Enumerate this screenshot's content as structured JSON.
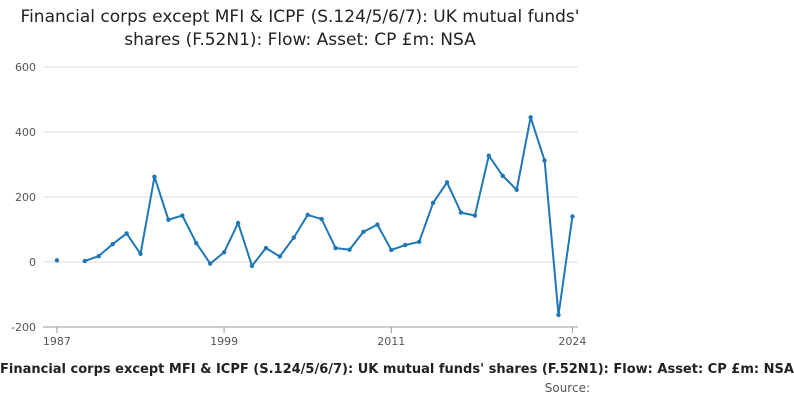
{
  "chart_data": {
    "type": "line",
    "title": "Financial corps except MFI & ICPF (S.124/5/6/7): UK mutual funds' shares (F.52N1): Flow: Asset: CP £m: NSA",
    "xlabel": "",
    "ylabel": "",
    "ylim": [
      -200,
      600
    ],
    "yticks": [
      -200,
      0,
      200,
      400,
      600
    ],
    "xticks": [
      1987,
      1999,
      2011,
      2024
    ],
    "grid": true,
    "legend": "none",
    "series": [
      {
        "name": "UK mutual funds' shares flow",
        "color": "#1f77b4",
        "points": [
          [
            1987,
            5
          ],
          [
            1989,
            3
          ],
          [
            1990,
            18
          ],
          [
            1991,
            55
          ],
          [
            1992,
            88
          ],
          [
            1993,
            25
          ],
          [
            1994,
            262
          ],
          [
            1995,
            130
          ],
          [
            1996,
            143
          ],
          [
            1997,
            58
          ],
          [
            1998,
            -5
          ],
          [
            1999,
            30
          ],
          [
            2000,
            120
          ],
          [
            2001,
            -12
          ],
          [
            2002,
            43
          ],
          [
            2003,
            17
          ],
          [
            2004,
            75
          ],
          [
            2005,
            145
          ],
          [
            2006,
            132
          ],
          [
            2007,
            43
          ],
          [
            2008,
            38
          ],
          [
            2009,
            93
          ],
          [
            2010,
            115
          ],
          [
            2011,
            37
          ],
          [
            2012,
            52
          ],
          [
            2013,
            62
          ],
          [
            2014,
            182
          ],
          [
            2015,
            245
          ],
          [
            2016,
            152
          ],
          [
            2017,
            143
          ],
          [
            2018,
            327
          ],
          [
            2019,
            265
          ],
          [
            2020,
            222
          ],
          [
            2021,
            445
          ],
          [
            2022,
            312
          ],
          [
            2023,
            -163
          ],
          [
            2024,
            140
          ]
        ]
      }
    ]
  },
  "footer": {
    "caption": "Financial corps except MFI & ICPF (S.124/5/6/7): UK mutual funds' shares (F.52N1): Flow: Asset: CP £m: NSA",
    "source": "Source:"
  }
}
